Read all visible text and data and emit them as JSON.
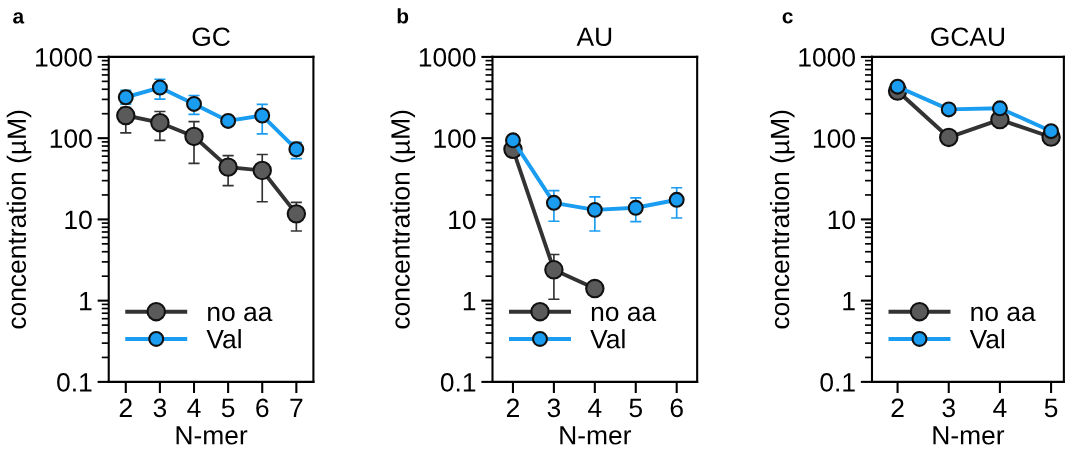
{
  "chart_data": [
    {
      "type": "line",
      "title": "GC",
      "annotations": [
        "a"
      ],
      "xlabel": "N-mer",
      "ylabel": "concentration (µM)",
      "x": [
        2,
        3,
        4,
        5,
        6,
        7
      ],
      "xlim": [
        1.5,
        7.5
      ],
      "xticks": [
        2,
        3,
        4,
        5,
        6,
        7
      ],
      "ylim": [
        0.1,
        1000
      ],
      "yticks": [
        0.1,
        1,
        10,
        100,
        1000
      ],
      "log": true,
      "legend": "lower left",
      "marker": "circle",
      "line_style": "solid",
      "series": [
        {
          "name": "no aa",
          "color": "#333333",
          "values": [
            190,
            155,
            105,
            44,
            40,
            11.7
          ],
          "errors": [
            [
              116,
              238
            ],
            [
              94,
              213
            ],
            [
              49,
              160
            ],
            [
              26,
              61
            ],
            [
              16.5,
              63
            ],
            [
              7.2,
              16.2
            ]
          ]
        },
        {
          "name": "Val",
          "color": "#1a9cf0",
          "values": [
            319,
            420,
            264,
            163,
            190,
            73
          ],
          "errors": [
            [
              262,
              389
            ],
            [
              302,
              531
            ],
            [
              196,
              335
            ],
            null,
            [
              113,
              260
            ],
            [
              56,
              89
            ]
          ]
        }
      ]
    },
    {
      "type": "line",
      "title": "AU",
      "annotations": [
        "b"
      ],
      "xlabel": "N-mer",
      "ylabel": "concentration (µM)",
      "x": [
        2,
        3,
        4,
        5,
        6
      ],
      "xlim": [
        1.5,
        6.5
      ],
      "xticks": [
        2,
        3,
        4,
        5,
        6
      ],
      "ylim": [
        0.1,
        1000
      ],
      "yticks": [
        0.1,
        1,
        10,
        100,
        1000
      ],
      "log": true,
      "legend": "lower left",
      "marker": "circle",
      "line_style": "solid",
      "series": [
        {
          "name": "no aa",
          "color": "#333333",
          "values": [
            73,
            2.4,
            1.41,
            null,
            null
          ],
          "errors": [
            null,
            [
              1.04,
              3.7
            ],
            null,
            null,
            null
          ]
        },
        {
          "name": "Val",
          "color": "#1a9cf0",
          "values": [
            94,
            16,
            13.1,
            13.9,
            17.4
          ],
          "errors": [
            null,
            [
              9.5,
              22.6
            ],
            [
              7.2,
              18.9
            ],
            [
              9.4,
              18.4
            ],
            [
              10.4,
              24.5
            ]
          ]
        }
      ]
    },
    {
      "type": "line",
      "title": "GCAU",
      "annotations": [
        "c"
      ],
      "xlabel": "N-mer",
      "ylabel": "concentration (µM)",
      "x": [
        2,
        3,
        4,
        5
      ],
      "xlim": [
        1.5,
        5.25
      ],
      "xticks": [
        2,
        3,
        4,
        5
      ],
      "ylim": [
        0.1,
        1000
      ],
      "yticks": [
        0.1,
        1,
        10,
        100,
        1000
      ],
      "log": true,
      "legend": "lower left",
      "marker": "circle",
      "line_style": "solid",
      "series": [
        {
          "name": "no aa",
          "color": "#333333",
          "values": [
            380,
            102,
            169,
            103
          ]
        },
        {
          "name": "Val",
          "color": "#1a9cf0",
          "values": [
            430,
            226,
            233,
            122
          ]
        }
      ]
    }
  ]
}
